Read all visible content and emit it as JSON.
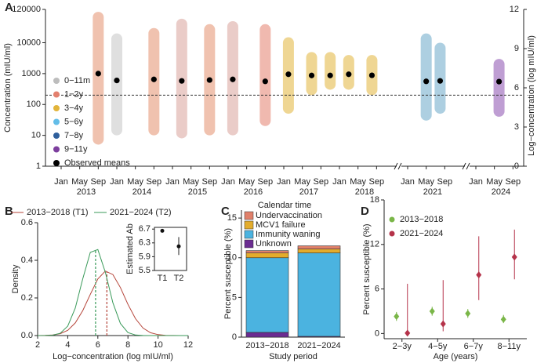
{
  "chart_data": [
    {
      "type": "scatter",
      "panel": "A",
      "ylabel": "Concentration (mIU/ml)",
      "y2label": "Log−concentration (log mIU/ml)",
      "xlabel": "Calendar time",
      "log_y": true,
      "ylim": [
        1,
        120000
      ],
      "yticks": [
        1,
        10,
        100,
        1000,
        10000,
        120000
      ],
      "y2lim": [
        0,
        12
      ],
      "y2ticks": [
        0,
        3,
        6,
        9,
        12
      ],
      "xyears": [
        "2013",
        "2014",
        "2015",
        "2016",
        "2017",
        "2018",
        "2021",
        "2024"
      ],
      "xmonths": [
        {
          "value": 1,
          "label": "Jan"
        },
        {
          "value": 5,
          "label": "May"
        },
        {
          "value": 9,
          "label": "Sep"
        }
      ],
      "threshold": 200,
      "groups": [
        {
          "name": "0−11m",
          "color": "#bdbdbd"
        },
        {
          "name": "1−2y",
          "color": "#e3806e"
        },
        {
          "name": "3−4y",
          "color": "#e2b43a"
        },
        {
          "name": "5−6y",
          "color": "#63bde8"
        },
        {
          "name": "7−8y",
          "color": "#2f5f9c"
        },
        {
          "name": "9−11y",
          "color": "#7d3f9e"
        }
      ],
      "clouds": [
        {
          "x": "2013-09",
          "low": 5,
          "high": 100000,
          "color": "#e3906e"
        },
        {
          "x": "2014-01",
          "low": 10,
          "high": 20000,
          "color": "#c4c4c4"
        },
        {
          "x": "2014-09",
          "low": 10,
          "high": 30000,
          "color": "#e3906e"
        },
        {
          "x": "2015-03",
          "low": 8,
          "high": 60000,
          "color": "#d9a39a"
        },
        {
          "x": "2015-09",
          "low": 10,
          "high": 40000,
          "color": "#e3906e"
        },
        {
          "x": "2016-02",
          "low": 10,
          "high": 50000,
          "color": "#d9a39a"
        },
        {
          "x": "2016-09",
          "low": 20,
          "high": 40000,
          "color": "#e3806e"
        },
        {
          "x": "2017-02",
          "low": 50,
          "high": 15000,
          "color": "#e2b43a"
        },
        {
          "x": "2017-07",
          "low": 200,
          "high": 5000,
          "color": "#e2b43a"
        },
        {
          "x": "2017-11",
          "low": 300,
          "high": 5000,
          "color": "#e2b43a"
        },
        {
          "x": "2018-03",
          "low": 300,
          "high": 4000,
          "color": "#e2b43a"
        },
        {
          "x": "2018-08",
          "low": 200,
          "high": 4000,
          "color": "#e2b43a"
        },
        {
          "x": "2021-05",
          "low": 30,
          "high": 20000,
          "color": "#6aa8c8"
        },
        {
          "x": "2021-08",
          "low": 50,
          "high": 10000,
          "color": "#6aa8c8"
        },
        {
          "x": "2024-06",
          "low": 40,
          "high": 3000,
          "color": "#8a4fae"
        }
      ],
      "means": {
        "name": "Observed means",
        "color": "#000000",
        "x": [
          "2013-09",
          "2014-01",
          "2014-09",
          "2015-03",
          "2015-09",
          "2016-02",
          "2016-09",
          "2017-02",
          "2017-07",
          "2017-11",
          "2018-03",
          "2018-08",
          "2021-05",
          "2021-08",
          "2024-06"
        ],
        "values": [
          1000,
          600,
          650,
          580,
          620,
          650,
          560,
          950,
          870,
          870,
          950,
          880,
          560,
          580,
          550
        ]
      }
    },
    {
      "type": "line",
      "panel": "B",
      "ylabel": "Density",
      "xlabel": "Log−concentration (log mIU/ml)",
      "xlim": [
        2,
        12
      ],
      "xticks": [
        2,
        4,
        6,
        8,
        10,
        12
      ],
      "ylim": [
        0,
        0.6
      ],
      "yticks": [
        {
          "value": 0,
          "label": "0.0"
        },
        0.2,
        0.4,
        0.6
      ],
      "x": [
        2,
        2.5,
        3,
        3.5,
        4,
        4.5,
        5,
        5.5,
        6,
        6.5,
        7,
        7.5,
        8,
        8.5,
        9,
        9.5,
        10,
        10.5,
        11,
        11.5,
        12
      ],
      "series": [
        {
          "name": "2013−2018 (T1)",
          "color": "#b5453a",
          "mean": 6.6,
          "values": [
            0.0001,
            0.0007,
            0.003,
            0.01,
            0.028,
            0.067,
            0.133,
            0.219,
            0.301,
            0.343,
            0.324,
            0.255,
            0.166,
            0.09,
            0.04,
            0.015,
            0.005,
            0.001,
            0.0003,
            0.0001,
            0
          ]
        },
        {
          "name": "2021−2024 (T2)",
          "color": "#3a9a5a",
          "mean": 5.85,
          "values": [
            0,
            0.0003,
            0.002,
            0.012,
            0.05,
            0.146,
            0.302,
            0.442,
            0.457,
            0.336,
            0.174,
            0.064,
            0.016,
            0.003,
            0.0004,
            0,
            0,
            0,
            0,
            0,
            0
          ]
        }
      ],
      "inset": {
        "type": "errorbar",
        "ylabel": "Estimated Ab",
        "categories": [
          "T1",
          "T2"
        ],
        "values": [
          6.65,
          6.2
        ],
        "low": [
          6.62,
          5.95
        ],
        "high": [
          6.68,
          6.47
        ],
        "ylim": [
          5.5,
          6.75
        ],
        "yticks": [
          5.5,
          5.9,
          6.3,
          6.7
        ]
      }
    },
    {
      "type": "stacked_bar",
      "panel": "C",
      "ylabel": "Percent susceptible (%)",
      "xlabel": "Study period",
      "categories": [
        "2013−2018",
        "2021−2024"
      ],
      "ylim": [
        0,
        16
      ],
      "yticks": [
        0,
        5,
        10,
        15
      ],
      "series": [
        {
          "name": "Unknown",
          "color": "#6b2c91",
          "values": [
            0.6,
            0.1
          ]
        },
        {
          "name": "Immunity waning",
          "color": "#4bb3e0",
          "values": [
            9.4,
            10.5
          ]
        },
        {
          "name": "MCV1 failure",
          "color": "#e3ac2c",
          "values": [
            0.6,
            0.5
          ]
        },
        {
          "name": "Undervaccination",
          "color": "#e0806a",
          "values": [
            0.3,
            0.4
          ]
        }
      ]
    },
    {
      "type": "errorbar",
      "panel": "D",
      "ylabel": "Percent susceptible (%)",
      "xlabel": "Age (years)",
      "categories": [
        "2−3y",
        "4−5y",
        "6−7y",
        "8−11y"
      ],
      "ylim": [
        -0.7,
        18
      ],
      "yticks": [
        0,
        6,
        12,
        18
      ],
      "series": [
        {
          "name": "2013−2018",
          "color": "#7ab648",
          "values": [
            2.3,
            3.0,
            2.7,
            1.9
          ],
          "low": [
            1.7,
            2.4,
            2.1,
            1.4
          ],
          "high": [
            2.9,
            3.6,
            3.3,
            2.5
          ]
        },
        {
          "name": "2021−2024",
          "color": "#b5334a",
          "values": [
            0.05,
            1.3,
            7.9,
            10.3
          ],
          "low": [
            0,
            0.3,
            4.5,
            7.3
          ],
          "high": [
            6.7,
            7.2,
            13.1,
            14
          ]
        }
      ]
    }
  ]
}
